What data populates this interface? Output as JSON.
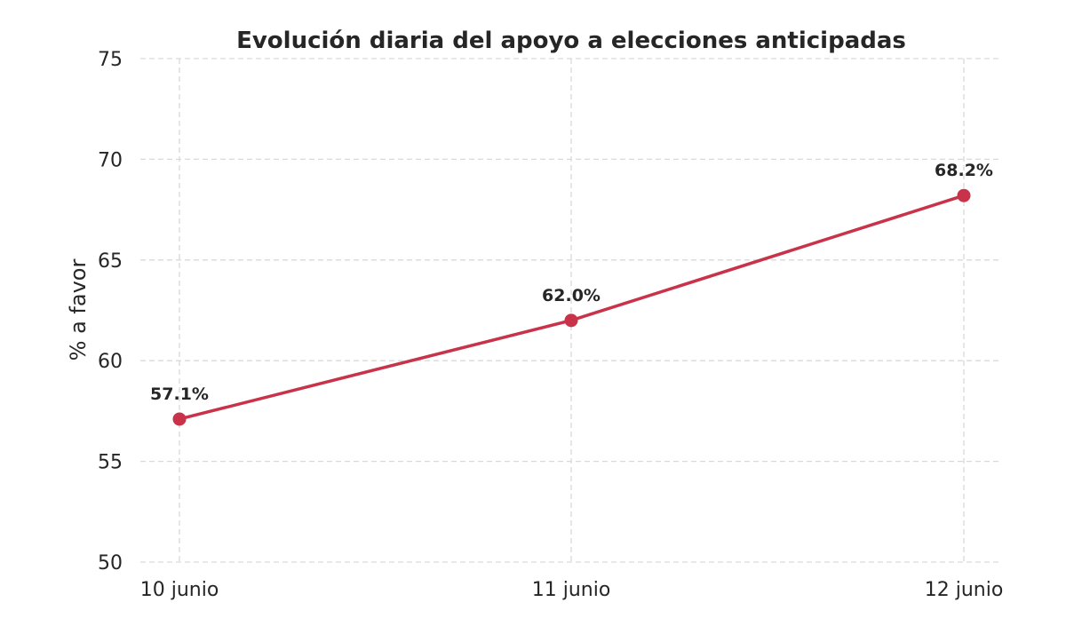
{
  "chart_data": {
    "type": "line",
    "title": "Evolución diaria del apoyo a elecciones anticipadas",
    "xlabel": "",
    "ylabel": "% a favor",
    "categories": [
      "10 junio",
      "11 junio",
      "12 junio"
    ],
    "series": [
      {
        "values": [
          57.1,
          62.0,
          68.2
        ],
        "labels": [
          "57.1%",
          "62.0%",
          "68.2%"
        ],
        "color": "#c8334a"
      }
    ],
    "ylim": [
      50,
      75
    ],
    "yticks": [
      50,
      55,
      60,
      65,
      70,
      75
    ],
    "grid": true,
    "grid_style": "dashed",
    "legend": "none"
  }
}
